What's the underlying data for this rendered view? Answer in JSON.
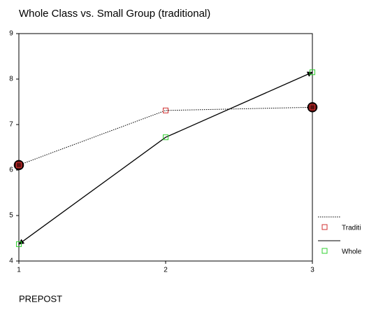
{
  "chart_data": {
    "type": "line",
    "title": "Whole Class vs. Small Group (traditional)",
    "x_label": "PREPOST",
    "x": [
      1,
      2,
      3
    ],
    "xlim": [
      1,
      3
    ],
    "xticks": [
      1,
      2,
      3
    ],
    "ylim": [
      4,
      9
    ],
    "yticks": [
      4,
      5,
      6,
      7,
      8,
      9
    ],
    "legend": "right",
    "series": [
      {
        "name": "Traditi",
        "color": "#d03030",
        "dashed": true,
        "values": [
          6.11,
          7.31,
          7.38
        ]
      },
      {
        "name": "Whole",
        "color": "#30d030",
        "dashed": false,
        "values": [
          4.37,
          6.72,
          8.15
        ]
      }
    ]
  }
}
